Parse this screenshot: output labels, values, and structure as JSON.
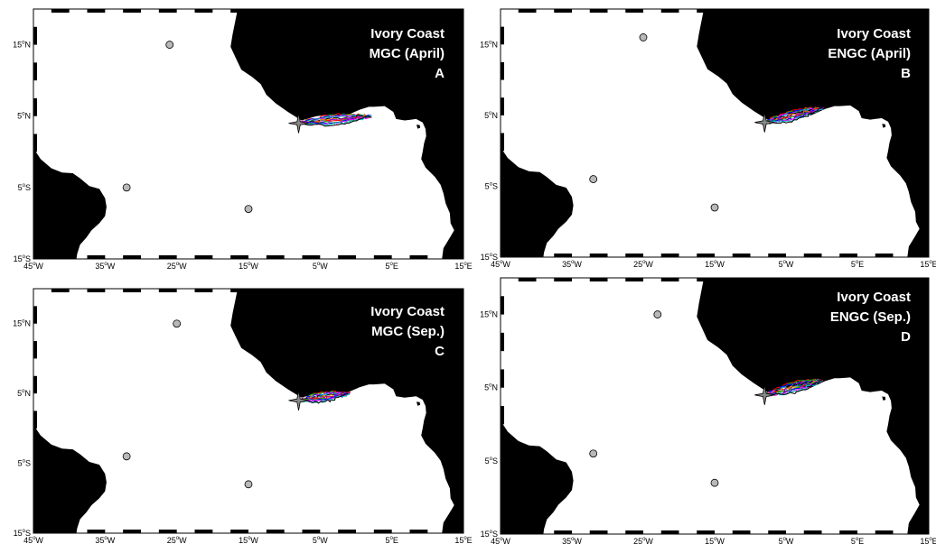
{
  "figure": {
    "lon_ticks": [
      {
        "base": "45",
        "deg": "o",
        "hem": "W"
      },
      {
        "base": "35",
        "deg": "o",
        "hem": "W"
      },
      {
        "base": "25",
        "deg": "o",
        "hem": "W"
      },
      {
        "base": "15",
        "deg": "o",
        "hem": "W"
      },
      {
        "base": "5",
        "deg": "o",
        "hem": "W"
      },
      {
        "base": "5",
        "deg": "o",
        "hem": "E"
      },
      {
        "base": "15",
        "deg": "o",
        "hem": "E"
      }
    ],
    "lat_ticks": [
      {
        "base": "15",
        "deg": "o",
        "hem": "N"
      },
      {
        "base": "5",
        "deg": "o",
        "hem": "N"
      },
      {
        "base": "5",
        "deg": "o",
        "hem": "S"
      },
      {
        "base": "15",
        "deg": "o",
        "hem": "S"
      }
    ],
    "colors": {
      "land": "#000000",
      "ocean": "#ffffff",
      "marker_fill": "#b8b8b8",
      "release_star": "#888888",
      "trajectory_colors": [
        "#ff0000",
        "#00c000",
        "#0000ff",
        "#ff00ff",
        "#00c0c0",
        "#000000",
        "#ff8000",
        "#8000ff"
      ]
    }
  },
  "panels": [
    {
      "id": "A",
      "title_line1": "Ivory Coast",
      "title_line2": "MGC (April)",
      "letter": "A",
      "land_markers": [
        {
          "lon": -26,
          "lat": 15
        },
        {
          "lon": -32,
          "lat": -5
        },
        {
          "lon": -15,
          "lat": -8
        }
      ],
      "release_point": {
        "lon": -8,
        "lat": 4
      },
      "trajectory_end": {
        "lon": 2,
        "lat": 5
      },
      "trajectory_count": 14
    },
    {
      "id": "B",
      "title_line1": "Ivory Coast",
      "title_line2": "ENGC (April)",
      "letter": "B",
      "land_markers": [
        {
          "lon": -25,
          "lat": 16
        },
        {
          "lon": -32,
          "lat": -4
        },
        {
          "lon": -15,
          "lat": -8
        }
      ],
      "release_point": {
        "lon": -8,
        "lat": 4
      },
      "trajectory_end": {
        "lon": 0,
        "lat": 6
      },
      "trajectory_count": 14
    },
    {
      "id": "C",
      "title_line1": "Ivory Coast",
      "title_line2": "MGC (Sep.)",
      "letter": "C",
      "land_markers": [
        {
          "lon": -25,
          "lat": 15
        },
        {
          "lon": -32,
          "lat": -4
        },
        {
          "lon": -15,
          "lat": -8
        }
      ],
      "release_point": {
        "lon": -8,
        "lat": 4
      },
      "trajectory_end": {
        "lon": -1,
        "lat": 5
      },
      "trajectory_count": 14
    },
    {
      "id": "D",
      "title_line1": "Ivory Coast",
      "title_line2": "ENGC (Sep.)",
      "letter": "D",
      "land_markers": [
        {
          "lon": -23,
          "lat": 15
        },
        {
          "lon": -32,
          "lat": -4
        },
        {
          "lon": -15,
          "lat": -8
        }
      ],
      "release_point": {
        "lon": -8,
        "lat": 4
      },
      "trajectory_end": {
        "lon": 0,
        "lat": 6
      },
      "trajectory_count": 14
    }
  ]
}
